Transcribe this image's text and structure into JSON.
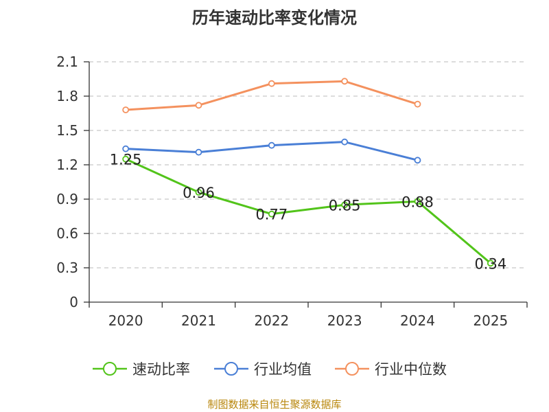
{
  "chart_data": {
    "type": "line",
    "title": "历年速动比率变化情况",
    "categories": [
      "2020",
      "2021",
      "2022",
      "2023",
      "2024",
      "2025"
    ],
    "y_ticks": [
      "0",
      "0.3",
      "0.6",
      "0.9",
      "1.2",
      "1.5",
      "1.8",
      "2.1"
    ],
    "ylim": [
      0,
      2.1
    ],
    "grid": true,
    "legend_position": "bottom",
    "series": [
      {
        "name": "速动比率",
        "color": "#52c41a",
        "values": [
          1.25,
          0.96,
          0.77,
          0.85,
          0.88,
          0.34
        ],
        "labels": [
          "1.25",
          "0.96",
          "0.77",
          "0.85",
          "0.88",
          "0.34"
        ]
      },
      {
        "name": "行业均值",
        "color": "#4a7fd6",
        "values": [
          1.34,
          1.31,
          1.37,
          1.4,
          1.24,
          null
        ]
      },
      {
        "name": "行业中位数",
        "color": "#f4915e",
        "values": [
          1.68,
          1.72,
          1.91,
          1.93,
          1.73,
          null
        ]
      }
    ]
  },
  "source_text": "制图数据来自恒生聚源数据库"
}
